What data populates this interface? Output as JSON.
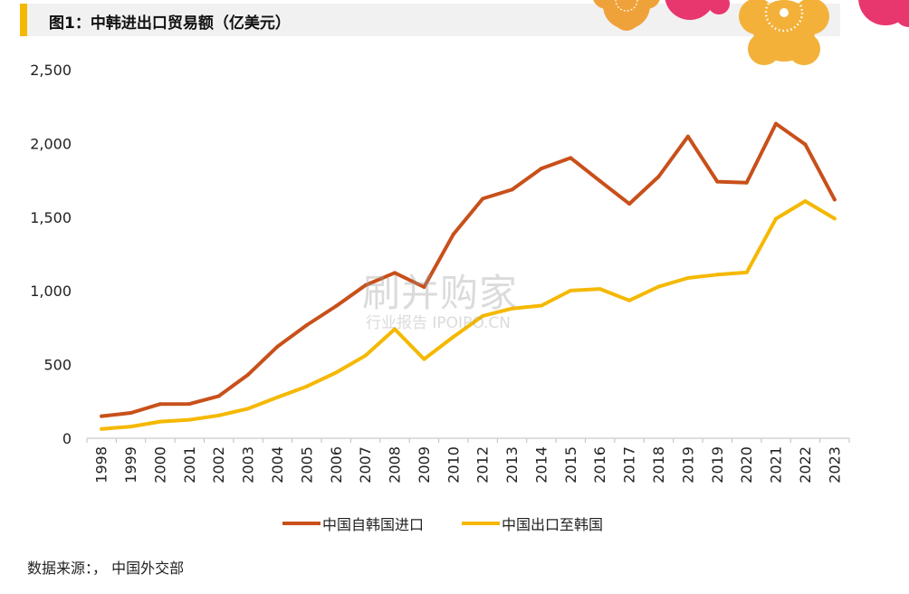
{
  "title": "图1：中韩进出口贸易额（亿美元）",
  "watermark": {
    "main": "刷并购家",
    "sub": "行业报告 IPOIPO.CN"
  },
  "source": "数据来源：，  中国外交部",
  "colors": {
    "import": "#c8501a",
    "export": "#f5b800",
    "accent": "#f5b800",
    "deco_orange": "#f0a23a",
    "deco_pink": "#e8366e",
    "deco_gold": "#f3b13a"
  },
  "chart_data": {
    "type": "line",
    "categories": [
      "1998",
      "1999",
      "2000",
      "2001",
      "2002",
      "2003",
      "2004",
      "2005",
      "2006",
      "2007",
      "2008",
      "2009",
      "2010",
      "2012",
      "2013",
      "2014",
      "2015",
      "2016",
      "2017",
      "2018",
      "2019",
      "2019",
      "2020",
      "2021",
      "2022",
      "2023"
    ],
    "series": [
      {
        "name": "中国自韩国进口",
        "values": [
          150,
          172,
          232,
          233,
          286,
          432,
          622,
          768,
          897,
          1038,
          1122,
          1026,
          1384,
          1625,
          1687,
          1830,
          1902,
          1745,
          1590,
          1775,
          2047,
          1741,
          1734,
          2134,
          1993,
          1619
        ]
      },
      {
        "name": "中国出口至韩国",
        "values": [
          63,
          79,
          113,
          125,
          155,
          201,
          278,
          352,
          446,
          561,
          740,
          537,
          688,
          830,
          880,
          900,
          1002,
          1013,
          935,
          1028,
          1087,
          1110,
          1125,
          1489,
          1609,
          1490
        ]
      }
    ],
    "ylim": [
      0,
      2500
    ],
    "yticks": [
      0,
      500,
      1000,
      1500,
      2000,
      2500
    ],
    "ytick_labels": [
      "0",
      "500",
      "1,000",
      "1,500",
      "2,000",
      "2,500"
    ],
    "grid": false,
    "legend_position": "bottom"
  }
}
